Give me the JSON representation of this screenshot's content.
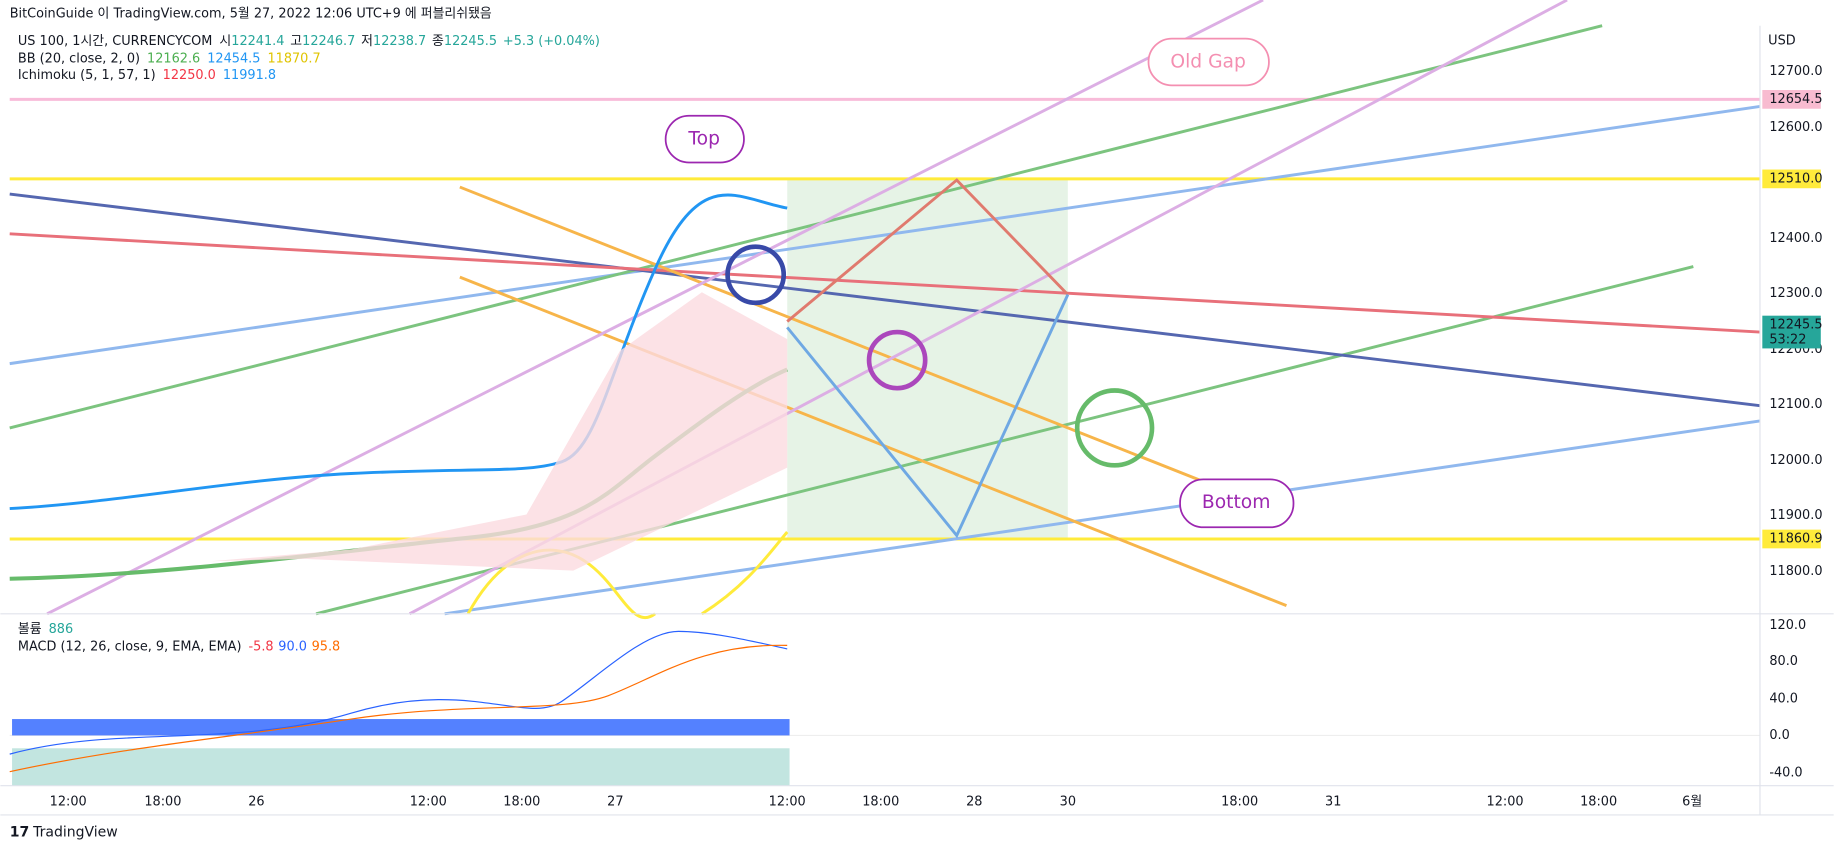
{
  "header": {
    "title": "BitCoinGuide 이 TradingView.com, 5월 27, 2022 12:06 UTC+9 에 퍼블리쉬됐음"
  },
  "legend": {
    "symbol": "US 100, 1시간, CURRENCYCOM",
    "open_label": "시",
    "open": "12241.4",
    "high_label": "고",
    "high": "12246.7",
    "low_label": "저",
    "low": "12238.7",
    "close_label": "종",
    "close": "12245.5",
    "change": "+5.3 (+0.04%)",
    "bb": {
      "name": "BB (20, close, 2, 0)",
      "basis": "12162.6",
      "upper": "12454.5",
      "lower": "11870.7"
    },
    "ichimoku": {
      "name": "Ichimoku (5, 1, 57, 1)",
      "a": "12250.0",
      "b": "11991.8"
    }
  },
  "price_axis": {
    "unit": "USD",
    "ticks": [
      "12700.0",
      "12600.0",
      "12400.0",
      "12300.0",
      "12200.0",
      "12100.0",
      "12000.0",
      "11900.0",
      "11800.0"
    ],
    "badges": {
      "old_gap": "12654.5",
      "top": "12510.0",
      "last": "12245.5",
      "countdown": "53:22",
      "bottom": "11860.9"
    }
  },
  "annotations": {
    "old_gap": "Old Gap",
    "top": "Top",
    "bottom": "Bottom"
  },
  "macd_pane": {
    "volume_label": "볼륨",
    "volume": "886",
    "name": "MACD (12, 26, close, 9, EMA, EMA)",
    "hist": "-5.8",
    "macd": "90.0",
    "signal": "95.8",
    "ticks": [
      "120.0",
      "80.0",
      "40.0",
      "0.0",
      "-40.0"
    ]
  },
  "time_axis": {
    "labels": [
      "12:00",
      "18:00",
      "26",
      "12:00",
      "18:00",
      "27",
      "12:00",
      "18:00",
      "28",
      "30",
      "18:00",
      "31",
      "12:00",
      "18:00",
      "6월"
    ]
  },
  "footer": {
    "brand": "TradingView"
  }
}
